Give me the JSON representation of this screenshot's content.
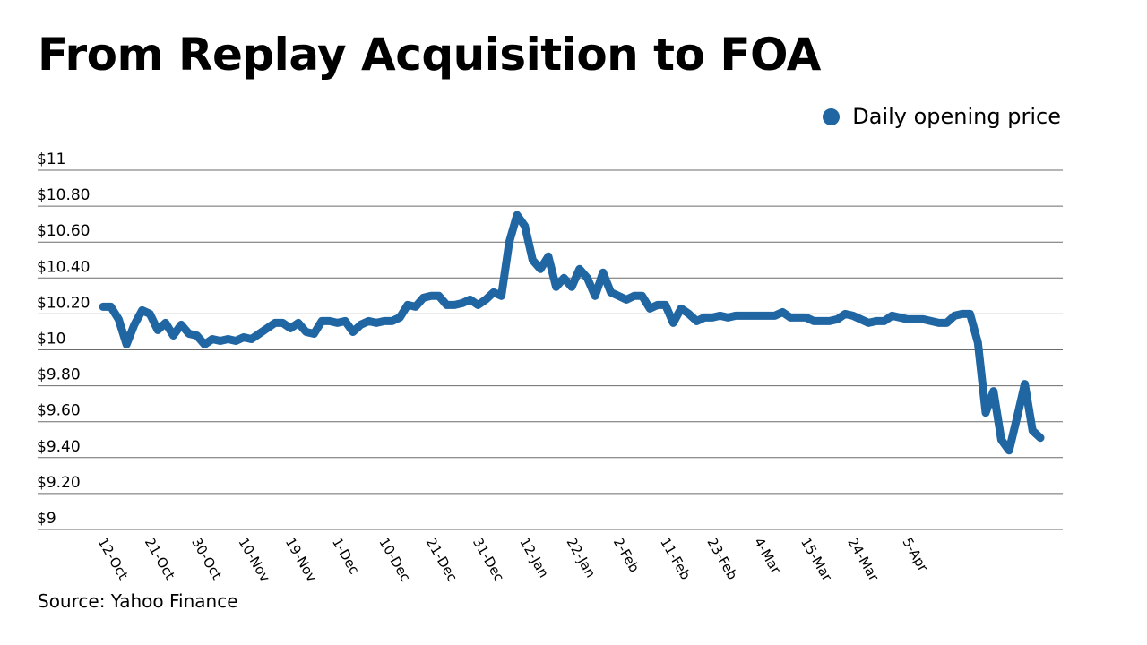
{
  "colors": {
    "line": "#1f66a3",
    "grid": "#6b6b6b"
  },
  "chart_data": {
    "type": "line",
    "title": "From Replay Acquisition to FOA",
    "source": "Source: Yahoo Finance",
    "xlabel": "",
    "ylabel": "",
    "ylim": [
      9,
      11
    ],
    "y_ticks": [
      {
        "value": 11,
        "label": "$11"
      },
      {
        "value": 10.8,
        "label": "$10.80"
      },
      {
        "value": 10.6,
        "label": "$10.60"
      },
      {
        "value": 10.4,
        "label": "$10.40"
      },
      {
        "value": 10.2,
        "label": "$10.20"
      },
      {
        "value": 10,
        "label": "$10"
      },
      {
        "value": 9.8,
        "label": "$9.80"
      },
      {
        "value": 9.6,
        "label": "$9.60"
      },
      {
        "value": 9.4,
        "label": "$9.40"
      },
      {
        "value": 9.2,
        "label": "$9.20"
      },
      {
        "value": 9,
        "label": "$9"
      }
    ],
    "x_ticks": [
      "12-Oct",
      "21-Oct",
      "30-Oct",
      "10-Nov",
      "19-Nov",
      "1-Dec",
      "10-Dec",
      "21-Dec",
      "31-Dec",
      "12-Jan",
      "22-Jan",
      "2-Feb",
      "11-Feb",
      "23-Feb",
      "4-Mar",
      "15-Mar",
      "24-Mar",
      "5-Apr"
    ],
    "x_tick_index": [
      0,
      6,
      12,
      18,
      24,
      30,
      36,
      42,
      48,
      54,
      60,
      66,
      72,
      78,
      84,
      90,
      96,
      103
    ],
    "legend": [
      "Daily opening price"
    ],
    "legend_position": "top-right",
    "grid": true,
    "series": [
      {
        "name": "Daily opening price",
        "values": [
          10.24,
          10.24,
          10.17,
          10.03,
          10.14,
          10.22,
          10.2,
          10.11,
          10.15,
          10.08,
          10.14,
          10.09,
          10.08,
          10.03,
          10.06,
          10.05,
          10.06,
          10.05,
          10.07,
          10.06,
          10.09,
          10.12,
          10.15,
          10.15,
          10.12,
          10.15,
          10.1,
          10.09,
          10.16,
          10.16,
          10.15,
          10.16,
          10.1,
          10.14,
          10.16,
          10.15,
          10.16,
          10.16,
          10.18,
          10.25,
          10.24,
          10.29,
          10.3,
          10.3,
          10.25,
          10.25,
          10.26,
          10.28,
          10.25,
          10.28,
          10.32,
          10.3,
          10.6,
          10.75,
          10.69,
          10.5,
          10.45,
          10.52,
          10.35,
          10.4,
          10.35,
          10.45,
          10.4,
          10.3,
          10.43,
          10.32,
          10.3,
          10.28,
          10.3,
          10.3,
          10.23,
          10.25,
          10.25,
          10.15,
          10.23,
          10.2,
          10.16,
          10.18,
          10.18,
          10.19,
          10.18,
          10.19,
          10.19,
          10.19,
          10.19,
          10.19,
          10.19,
          10.21,
          10.18,
          10.18,
          10.18,
          10.16,
          10.16,
          10.16,
          10.17,
          10.2,
          10.19,
          10.17,
          10.15,
          10.16,
          10.16,
          10.19,
          10.18,
          10.17,
          10.17,
          10.17,
          10.16,
          10.15,
          10.15,
          10.19,
          10.2,
          10.2,
          10.04,
          9.65,
          9.77,
          9.5,
          9.44,
          9.62,
          9.81,
          9.55,
          9.51
        ]
      }
    ]
  }
}
